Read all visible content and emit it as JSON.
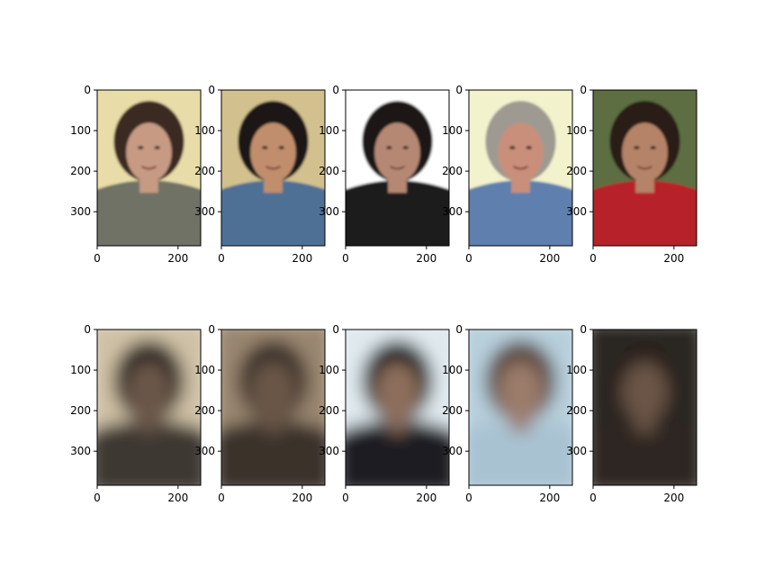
{
  "chart_data": {
    "type": "image-grid",
    "rows": 2,
    "cols": 5,
    "panels": [
      {
        "row": 0,
        "col": 0,
        "content": "photo-woman-curly-dark-hair-patterned-sweater",
        "palette": {
          "bg": "#e8dca8",
          "hair": "#3a2a22",
          "skin": "#c79a83",
          "body": "#6f7266"
        }
      },
      {
        "row": 0,
        "col": 1,
        "content": "photo-young-man-smiling-denim-shirt",
        "palette": {
          "bg": "#d2c18e",
          "hair": "#1e1712",
          "skin": "#c08e6c",
          "body": "#4f6f95"
        }
      },
      {
        "row": 0,
        "col": 2,
        "content": "photo-woman-dark-hair-looking-left",
        "palette": {
          "bg": "#ffffff",
          "hair": "#1a1616",
          "skin": "#b58873",
          "body": "#1b1b1f"
        }
      },
      {
        "row": 0,
        "col": 3,
        "content": "photo-older-man-plaid-shirt-apron",
        "palette": {
          "bg": "#f2f2cc",
          "hair": "#9e9a92",
          "skin": "#c98f7a",
          "body": "#5f7fae"
        }
      },
      {
        "row": 0,
        "col": 4,
        "content": "photo-young-man-red-jacket",
        "palette": {
          "bg": "#5c6e43",
          "hair": "#2a1c14",
          "skin": "#b58367",
          "body": "#b7242c"
        }
      },
      {
        "row": 1,
        "col": 0,
        "content": "blurred-reconstruction",
        "palette": {
          "bg": "#cfc1a6",
          "hair": "#2d2621",
          "skin": "#6a5648",
          "body": "#3c3731"
        }
      },
      {
        "row": 1,
        "col": 1,
        "content": "blurred-reconstruction",
        "palette": {
          "bg": "#9a8670",
          "hair": "#3a3029",
          "skin": "#6b5647",
          "body": "#3a332c"
        }
      },
      {
        "row": 1,
        "col": 2,
        "content": "blurred-reconstruction",
        "palette": {
          "bg": "#dfe9ee",
          "hair": "#111216",
          "skin": "#8d6e5c",
          "body": "#1c1e22"
        }
      },
      {
        "row": 1,
        "col": 3,
        "content": "blurred-reconstruction",
        "palette": {
          "bg": "#b7cfdc",
          "hair": "#5a4a3f",
          "skin": "#9b7b6a",
          "body": "#a9c2d2"
        }
      },
      {
        "row": 1,
        "col": 4,
        "content": "blurred-reconstruction",
        "palette": {
          "bg": "#2b2722",
          "hair": "#2a211c",
          "skin": "#6b5546",
          "body": "#2e2824"
        }
      }
    ],
    "image_width": 256,
    "image_height": 384,
    "xlim": [
      0,
      256
    ],
    "ylim": [
      384,
      0
    ],
    "xticks": [
      0,
      200
    ],
    "yticks": [
      0,
      100,
      200,
      300
    ],
    "xtick_labels": [
      "0",
      "200"
    ],
    "ytick_labels": [
      "0",
      "100",
      "200",
      "300"
    ],
    "grid": false
  }
}
